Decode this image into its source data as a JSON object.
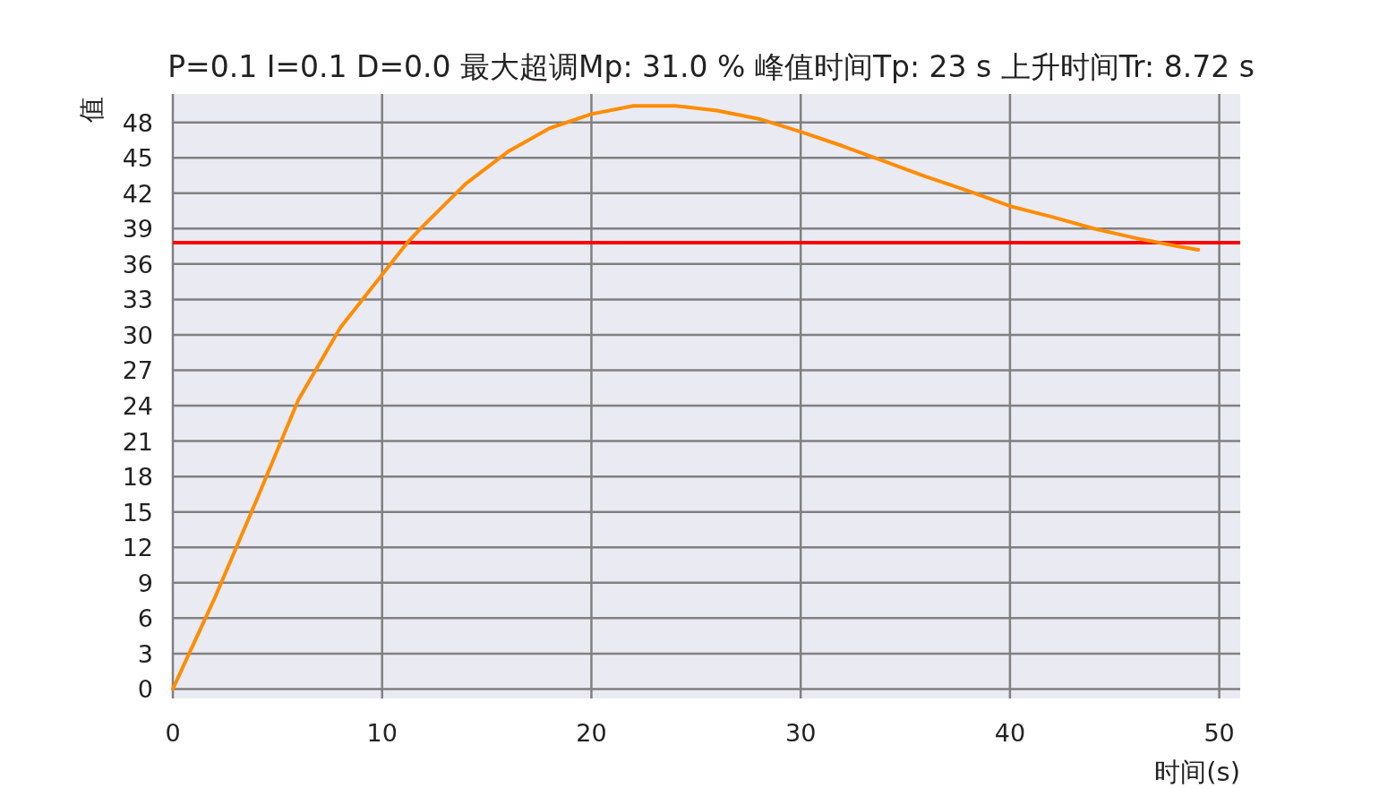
{
  "chart_data": {
    "type": "line",
    "title": "P=0.1  I=0.1  D=0.0  最大超调Mp: 31.0 %  峰值时间Tp: 23 s  上升时间Tr: 8.72 s",
    "xlabel": "时间(s)",
    "ylabel": "值",
    "x": [
      0,
      2,
      4,
      6,
      8,
      10,
      11.2,
      12,
      14,
      16,
      18,
      20,
      22,
      23,
      24,
      26,
      28,
      30,
      32,
      34,
      36,
      38,
      40,
      42,
      44,
      46,
      48,
      49
    ],
    "series": [
      {
        "color": "#ff8c00",
        "values": [
          0,
          7.7,
          16.0,
          24.5,
          30.6,
          35.1,
          37.8,
          39.3,
          42.8,
          45.5,
          47.5,
          48.7,
          49.4,
          49.4,
          49.4,
          49.0,
          48.3,
          47.2,
          46.0,
          44.7,
          43.4,
          42.2,
          40.9,
          40.0,
          39.0,
          38.2,
          37.5,
          37.2
        ]
      }
    ],
    "ref_lines": [
      {
        "axis": "y",
        "value": 37.8,
        "color": "#ff0000"
      }
    ],
    "xlim": [
      0,
      51
    ],
    "ylim": [
      -0.8,
      50.4
    ],
    "xticks": [
      0,
      10,
      20,
      30,
      40,
      50
    ],
    "yticks": [
      0,
      3,
      6,
      9,
      12,
      15,
      18,
      21,
      24,
      27,
      30,
      33,
      36,
      39,
      42,
      45,
      48
    ],
    "grid": true
  }
}
